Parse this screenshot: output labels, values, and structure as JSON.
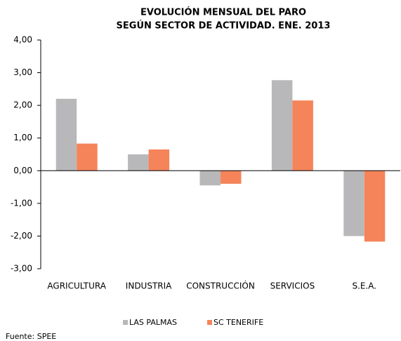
{
  "chart_data": {
    "type": "bar",
    "title": "EVOLUCIÓN MENSUAL DEL PARO",
    "subtitle": "SEGÚN SECTOR DE ACTIVIDAD. ENE. 2013",
    "categories": [
      "AGRICULTURA",
      "INDUSTRIA",
      "CONSTRUCCIÓN",
      "SERVICIOS",
      "S.E.A."
    ],
    "series": [
      {
        "name": "LAS PALMAS",
        "color": "#b8b8ba",
        "values": [
          2.2,
          0.5,
          -0.45,
          2.77,
          -2.0
        ]
      },
      {
        "name": "SC TENERIFE",
        "color": "#f5845a",
        "values": [
          0.83,
          0.65,
          -0.4,
          2.15,
          -2.17
        ]
      }
    ],
    "ylim": [
      -3,
      4
    ],
    "yticks": [
      {
        "value": -3,
        "label": "-3,00"
      },
      {
        "value": -2,
        "label": "-2,00"
      },
      {
        "value": -1,
        "label": "-1,00"
      },
      {
        "value": 0,
        "label": "0,00"
      },
      {
        "value": 1,
        "label": "1,00"
      },
      {
        "value": 2,
        "label": "2,00"
      },
      {
        "value": 3,
        "label": "3,00"
      },
      {
        "value": 4,
        "label": "4,00"
      }
    ],
    "legend": "bottom",
    "source": "Fuente: SPEE"
  }
}
